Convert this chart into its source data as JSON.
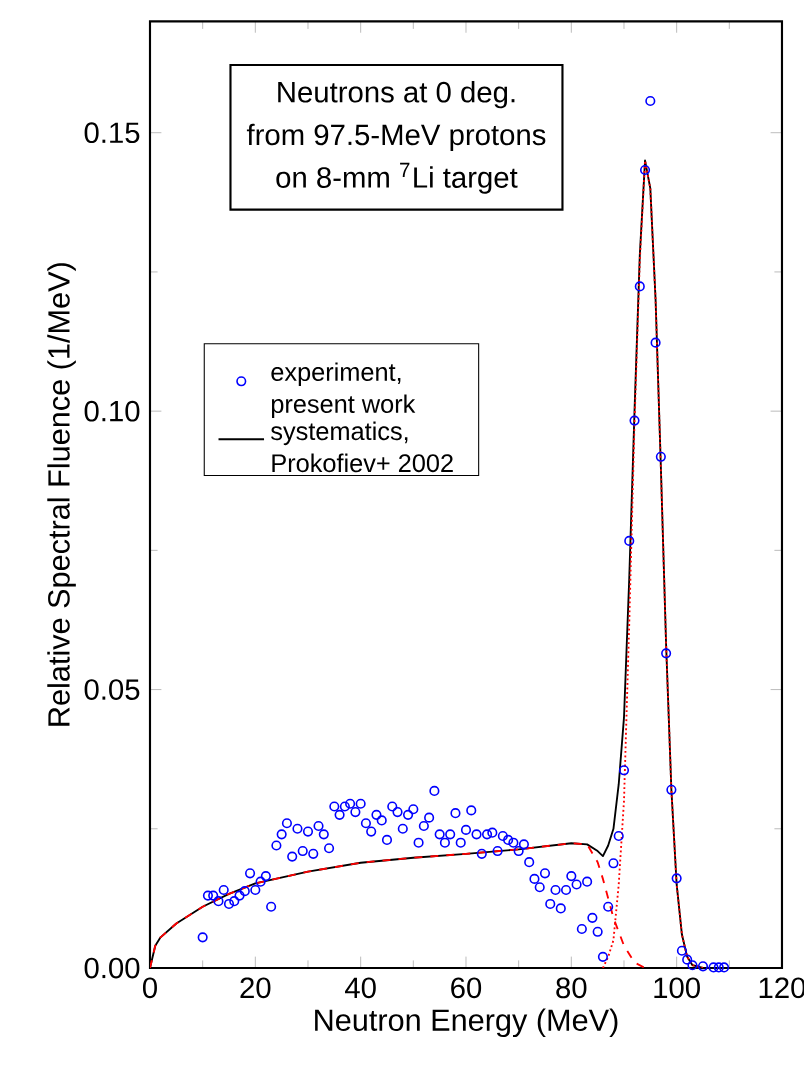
{
  "chart_data": {
    "type": "scatter",
    "xlabel": "Neutron Energy (MeV)",
    "ylabel": "Relative Spectral Fluence (1/MeV)",
    "annotations": [
      "Neutrons at 0 deg.",
      "from 97.5-MeV protons",
      "on 8-mm $^{7}$Li target"
    ],
    "xlim": [
      0,
      120
    ],
    "ylim": [
      0,
      0.17
    ],
    "xticks": [
      0,
      20,
      40,
      60,
      80,
      100,
      120
    ],
    "yticks": [
      {
        "value": 0,
        "label": "0.00"
      },
      {
        "value": 0.05,
        "label": "0.05"
      },
      {
        "value": 0.1,
        "label": "0.10"
      },
      {
        "value": 0.15,
        "label": "0.15"
      }
    ],
    "legend": "left",
    "grid": false,
    "series": [
      {
        "name": "experiment, present work",
        "marker": "circle",
        "color": "#0000ff",
        "x": [
          10,
          11,
          12,
          13,
          14,
          15,
          16,
          17,
          18,
          19,
          20,
          21,
          22,
          23,
          24,
          25,
          26,
          27,
          28,
          29,
          30,
          31,
          32,
          33,
          34,
          35,
          36,
          37,
          38,
          39,
          40,
          41,
          42,
          43,
          44,
          45,
          46,
          47,
          48,
          49,
          50,
          51,
          52,
          53,
          54,
          55,
          56,
          57,
          58,
          59,
          60,
          61,
          62,
          63,
          64,
          65,
          66,
          67,
          68,
          69,
          70,
          71,
          72,
          73,
          74,
          75,
          76,
          77,
          78,
          79,
          80,
          81,
          82,
          83,
          84,
          85,
          86,
          87,
          88,
          89,
          90,
          91,
          92,
          93,
          94,
          95,
          96,
          97,
          98,
          99,
          100,
          101,
          102,
          103,
          105,
          107,
          108,
          109
        ],
        "values": [
          0.0055,
          0.013,
          0.013,
          0.012,
          0.014,
          0.0115,
          0.012,
          0.013,
          0.0138,
          0.017,
          0.014,
          0.0155,
          0.0165,
          0.011,
          0.022,
          0.024,
          0.026,
          0.02,
          0.025,
          0.021,
          0.0245,
          0.0205,
          0.0255,
          0.024,
          0.0215,
          0.029,
          0.0275,
          0.029,
          0.0295,
          0.028,
          0.0295,
          0.026,
          0.0245,
          0.0275,
          0.0265,
          0.023,
          0.029,
          0.028,
          0.025,
          0.0275,
          0.0285,
          0.0225,
          0.0255,
          0.027,
          0.0318,
          0.024,
          0.0225,
          0.024,
          0.0278,
          0.0225,
          0.0248,
          0.0283,
          0.024,
          0.0205,
          0.024,
          0.0243,
          0.021,
          0.0237,
          0.023,
          0.0225,
          0.021,
          0.0222,
          0.019,
          0.016,
          0.0145,
          0.017,
          0.0115,
          0.014,
          0.0107,
          0.014,
          0.0165,
          0.015,
          0.007,
          0.0155,
          0.009,
          0.0065,
          0.002,
          0.011,
          0.0188,
          0.0237,
          0.0355,
          0.0767,
          0.0983,
          0.1224,
          0.1433,
          0.1557,
          0.1123,
          0.0918,
          0.0565,
          0.032,
          0.0161,
          0.0031,
          0.0015,
          0.0005,
          0.0003,
          0.0001,
          0.0001,
          0.0001
        ]
      },
      {
        "name": "systematics, Prokofiev+ 2002",
        "type": "line",
        "line_style": "solid",
        "color": "#000000",
        "x": [
          0,
          1,
          2,
          5,
          10,
          15,
          20,
          30,
          40,
          50,
          60,
          70,
          80,
          83,
          85,
          86,
          87,
          88,
          89,
          90,
          91,
          92,
          93,
          94,
          95,
          96,
          97,
          98,
          99,
          100,
          101,
          102,
          103,
          105,
          110
        ],
        "values": [
          0,
          0.004,
          0.0055,
          0.008,
          0.011,
          0.0133,
          0.0152,
          0.0173,
          0.0189,
          0.0198,
          0.0205,
          0.0213,
          0.0224,
          0.0222,
          0.021,
          0.0201,
          0.022,
          0.025,
          0.033,
          0.045,
          0.07,
          0.1,
          0.128,
          0.145,
          0.14,
          0.12,
          0.09,
          0.058,
          0.032,
          0.015,
          0.006,
          0.002,
          0.0005,
          0,
          0
        ]
      },
      {
        "type": "line",
        "line_style": "dashed",
        "color": "#ff0000",
        "x": [
          0,
          1,
          2,
          5,
          10,
          15,
          20,
          30,
          40,
          50,
          60,
          70,
          80,
          83,
          85,
          86,
          88,
          90,
          92,
          94
        ],
        "values": [
          0,
          0.004,
          0.0055,
          0.008,
          0.011,
          0.0133,
          0.0152,
          0.0173,
          0.0189,
          0.0198,
          0.0205,
          0.0213,
          0.0224,
          0.0222,
          0.019,
          0.016,
          0.009,
          0.004,
          0.001,
          0
        ]
      },
      {
        "type": "line",
        "line_style": "dotted",
        "color": "#ff0000",
        "x": [
          86,
          87,
          88,
          89,
          90,
          91,
          92,
          93,
          94,
          95,
          96,
          97,
          98,
          99,
          100,
          101,
          102,
          103,
          105
        ],
        "values": [
          0,
          0.002,
          0.005,
          0.015,
          0.03,
          0.062,
          0.098,
          0.127,
          0.145,
          0.14,
          0.12,
          0.09,
          0.058,
          0.032,
          0.015,
          0.006,
          0.002,
          0.0005,
          0
        ]
      }
    ]
  }
}
